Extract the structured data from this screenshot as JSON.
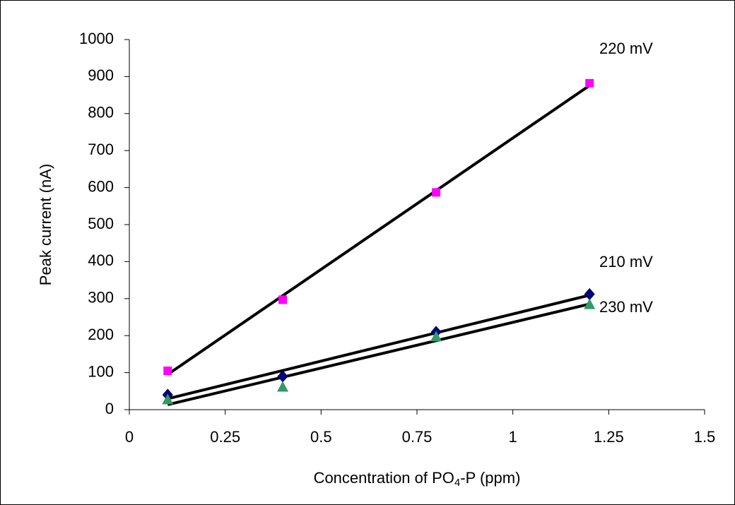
{
  "chart_data": {
    "type": "scatter",
    "y_label": "Peak current (nA)",
    "x_label": {
      "before": "Concentration of PO",
      "sub": "4",
      "after": "-P (ppm)"
    },
    "x": [
      0.1,
      0.4,
      0.8,
      1.2
    ],
    "series": [
      {
        "name": "210 mV",
        "color": "#000080",
        "marker": "diamond",
        "values": [
          40,
          90,
          210,
          312
        ]
      },
      {
        "name": "220 mV",
        "color": "#ff00ff",
        "marker": "square",
        "values": [
          105,
          297,
          587,
          882
        ]
      },
      {
        "name": "230 mV",
        "color": "#339966",
        "marker": "triangle",
        "values": [
          28,
          62,
          198,
          285
        ]
      }
    ],
    "trendline": "linear",
    "xlim": [
      0,
      1.5
    ],
    "xticks": [
      0,
      0.25,
      0.5,
      0.75,
      1,
      1.25,
      1.5
    ],
    "ylim": [
      0,
      1000
    ],
    "yticks": [
      0,
      100,
      200,
      300,
      400,
      500,
      600,
      700,
      800,
      900,
      1000
    ],
    "grid": false
  }
}
